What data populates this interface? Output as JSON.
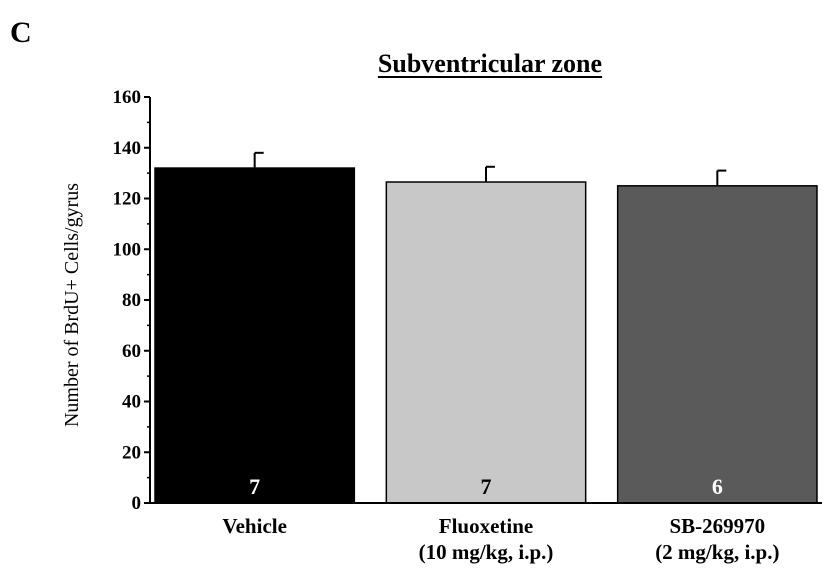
{
  "chart_data": {
    "type": "bar",
    "panel_label": "C",
    "title": "Subventricular zone",
    "ylabel": "Number of BrdU+ Cells/gyrus",
    "xlabel": "",
    "ylim": [
      0,
      160
    ],
    "yticks": [
      0,
      20,
      40,
      60,
      80,
      100,
      120,
      140,
      160
    ],
    "categories": [
      {
        "line1": "Vehicle",
        "line2": ""
      },
      {
        "line1": "Fluoxetine",
        "line2": "(10 mg/kg, i.p.)"
      },
      {
        "line1": "SB-269970",
        "line2": "(2 mg/kg, i.p.)"
      }
    ],
    "values": [
      132,
      126.5,
      125
    ],
    "errors": [
      6,
      6,
      6
    ],
    "n_labels": [
      "7",
      "7",
      "6"
    ],
    "bar_colors": [
      "#000000",
      "#c8c8c8",
      "#5a5a5a"
    ],
    "n_label_colors": [
      "#ffffff",
      "#000000",
      "#ffffff"
    ],
    "grid": false,
    "legend": "none"
  }
}
